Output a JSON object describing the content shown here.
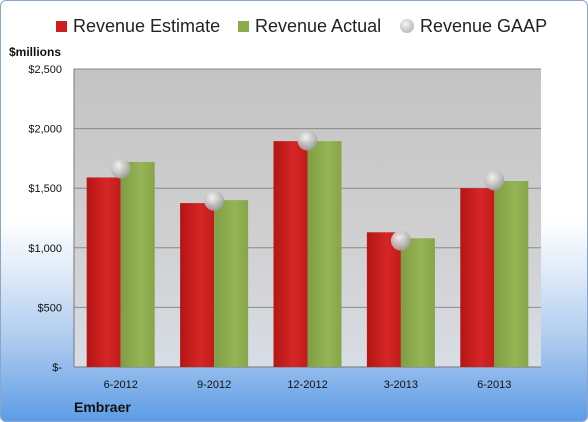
{
  "chart_data": {
    "type": "bar",
    "categories": [
      "6-2012",
      "9-2012",
      "12-2012",
      "3-2013",
      "6-2013"
    ],
    "series": [
      {
        "name": "Revenue Estimate",
        "values": [
          1590,
          1375,
          1895,
          1130,
          1500
        ],
        "color": "#cc1f1f"
      },
      {
        "name": "Revenue Actual",
        "values": [
          1720,
          1400,
          1895,
          1080,
          1560
        ],
        "color": "#8cac4c"
      }
    ],
    "gaap": {
      "name": "Revenue GAAP",
      "values": [
        1665,
        1395,
        1900,
        1060,
        1565
      ],
      "color": "#c9c9c9"
    },
    "ylabel": "$millions",
    "ylim": [
      0,
      2500
    ],
    "yticks": [
      0,
      500,
      1000,
      1500,
      2000,
      2500
    ],
    "ytick_labels": [
      "$-",
      "$500",
      "$1,000",
      "$1,500",
      "$2,000",
      "$2,500"
    ],
    "company": "Embraer",
    "legend_position": "top",
    "grid": true,
    "plot_background": "#c8c8c8"
  }
}
